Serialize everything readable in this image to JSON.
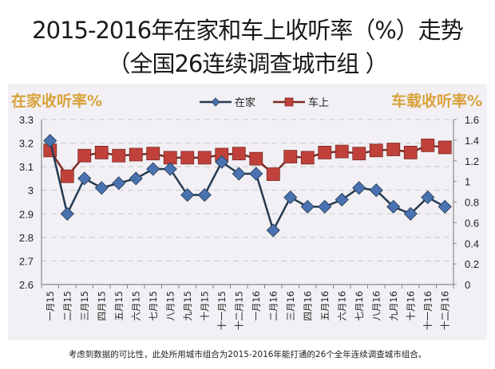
{
  "title": {
    "line1": "2015-2016年在家和车上收听率（%）走势",
    "line2": "（全国26连续调查城市组 ）"
  },
  "axis_titles": {
    "left": "在家收听率%",
    "right": "车载收听率%"
  },
  "legend": {
    "home": "在家",
    "car": "车上"
  },
  "footnote": "考虑到数据的可比性，此处所用城市组合为2015-2016年能打通的26个全年连续调查城市组合。",
  "colors": {
    "home": "#4a72b0",
    "home_line": "#243a52",
    "car": "#c0413a",
    "car_line": "#7a2a24",
    "axis_title": "#d9a23a",
    "grid": "#c8c8c8",
    "panel": "#f2f0f4"
  },
  "chart_data": {
    "type": "line",
    "title": "2015-2016年在家和车上收听率（%）走势（全国26连续调查城市组）",
    "categories": [
      "一月15",
      "二月15",
      "三月15",
      "四月15",
      "五月15",
      "六月15",
      "七月15",
      "八月15",
      "九月15",
      "十月15",
      "十一月15",
      "十二月15",
      "一月16",
      "二月16",
      "三月16",
      "四月16",
      "五月16",
      "六月16",
      "七月16",
      "八月16",
      "九月16",
      "十月16",
      "十一月16",
      "十二月16"
    ],
    "series": [
      {
        "name": "在家",
        "axis": "left",
        "marker": "diamond",
        "values": [
          3.21,
          2.9,
          3.05,
          3.01,
          3.03,
          3.05,
          3.09,
          3.09,
          2.98,
          2.98,
          3.12,
          3.07,
          3.07,
          2.83,
          2.97,
          2.93,
          2.93,
          2.96,
          3.01,
          3.0,
          2.93,
          2.9,
          2.97,
          2.93
        ]
      },
      {
        "name": "车上",
        "axis": "right",
        "marker": "square",
        "values": [
          1.3,
          1.05,
          1.25,
          1.28,
          1.25,
          1.26,
          1.27,
          1.23,
          1.23,
          1.23,
          1.26,
          1.27,
          1.22,
          1.07,
          1.24,
          1.23,
          1.28,
          1.29,
          1.27,
          1.3,
          1.31,
          1.28,
          1.35,
          1.33
        ]
      }
    ],
    "ylabel": "在家收听率%",
    "y2label": "车载收听率%",
    "ylim": [
      2.6,
      3.3
    ],
    "yticks": [
      "3.3",
      "3.2",
      "3.1",
      "3",
      "2.9",
      "2.8",
      "2.7",
      "2.6"
    ],
    "y2lim": [
      0,
      1.6
    ],
    "y2ticks": [
      "1.6",
      "1.4",
      "1.2",
      "1",
      "0.8",
      "0.6",
      "0.4",
      "0.2",
      "0"
    ],
    "grid": true,
    "legend_position": "top"
  }
}
